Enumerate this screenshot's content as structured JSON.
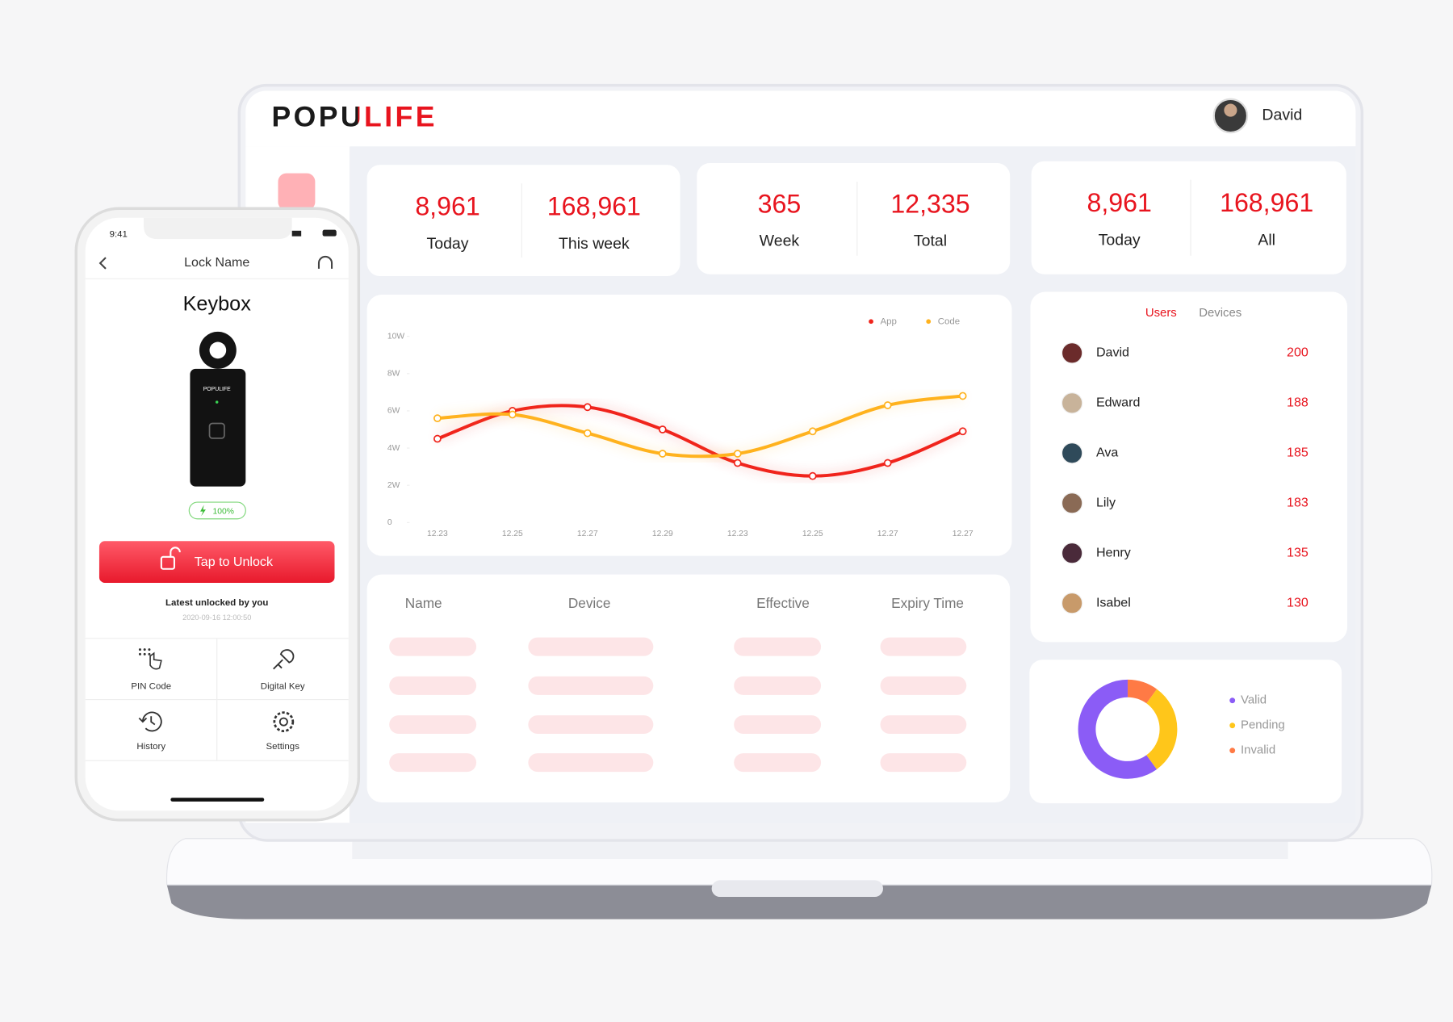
{
  "laptop": {
    "logo": "POPULIFE",
    "user": "David",
    "stats": [
      {
        "value": "8,961",
        "label": "Today"
      },
      {
        "value": "168,961",
        "label": "This week"
      },
      {
        "value": "365",
        "label": "Week"
      },
      {
        "value": "12,335",
        "label": "Total"
      },
      {
        "value": "8,961",
        "label": "Today"
      },
      {
        "value": "168,961",
        "label": "All"
      }
    ],
    "line_chart": {
      "type": "line",
      "x": [
        "12.23",
        "12.25",
        "12.27",
        "12.29",
        "12.23",
        "12.25",
        "12.27",
        "12.27"
      ],
      "ylim": [
        0,
        10
      ],
      "yticks": [
        {
          "value": 0,
          "label": "0"
        },
        {
          "value": 2,
          "label": "2W"
        },
        {
          "value": 4,
          "label": "4W"
        },
        {
          "value": 6,
          "label": "6W"
        },
        {
          "value": 8,
          "label": "8W"
        },
        {
          "value": 10,
          "label": "10W"
        }
      ],
      "series": [
        {
          "name": "App",
          "color": "#f0241c",
          "values": [
            4.5,
            6.0,
            6.2,
            5.0,
            3.2,
            2.5,
            3.2,
            4.9
          ]
        },
        {
          "name": "Code",
          "color": "#ffb21e",
          "values": [
            5.6,
            5.8,
            4.8,
            3.7,
            3.7,
            4.9,
            6.3,
            6.8
          ]
        }
      ]
    },
    "table": {
      "columns": [
        "Name",
        "Device",
        "Effective",
        "Expiry Time"
      ]
    },
    "ranking": {
      "tabs": [
        "Users",
        "Devices"
      ],
      "rows": [
        {
          "name": "David",
          "count": 200
        },
        {
          "name": "Edward",
          "count": 188
        },
        {
          "name": "Ava",
          "count": 185
        },
        {
          "name": "Lily",
          "count": 183
        },
        {
          "name": "Henry",
          "count": 135
        },
        {
          "name": "Isabel",
          "count": 130
        }
      ]
    },
    "donut": {
      "type": "pie",
      "series": [
        {
          "name": "Valid",
          "color": "#8b5cf6",
          "value": 60
        },
        {
          "name": "Pending",
          "color": "#ffc61a",
          "value": 30
        },
        {
          "name": "Invalid",
          "color": "#ff7a45",
          "value": 10
        }
      ]
    }
  },
  "phone": {
    "time": "9:41",
    "header": "Lock Name",
    "device": "Keybox",
    "device_logo": "POPULIFE",
    "battery": "100%",
    "unlock_button": "Tap to Unlock",
    "latest": "Latest unlocked by you",
    "timestamp": "2020-09-16 12:00:50",
    "menu": [
      "PIN Code",
      "Digital Key",
      "History",
      "Settings"
    ]
  }
}
